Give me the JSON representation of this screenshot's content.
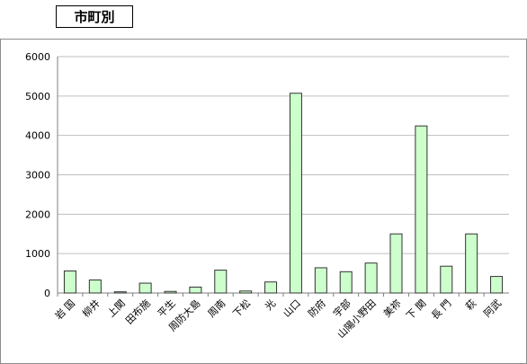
{
  "header": {
    "title": "市町別"
  },
  "chart_data": {
    "type": "bar",
    "title": "",
    "xlabel": "",
    "ylabel": "",
    "ylim": [
      0,
      6000
    ],
    "yticks": [
      0,
      1000,
      2000,
      3000,
      4000,
      5000,
      6000
    ],
    "grid": true,
    "categories": [
      "岩 国",
      "柳井",
      "上関",
      "田布施",
      "平生",
      "周防大島",
      "周南",
      "下松",
      "光",
      "山口",
      "防府",
      "宇部",
      "山陽小野田",
      "美祢",
      "下 関",
      "長 門",
      "萩",
      "阿武"
    ],
    "values": [
      560,
      330,
      30,
      250,
      40,
      150,
      580,
      50,
      280,
      5070,
      640,
      540,
      760,
      1500,
      4240,
      680,
      1500,
      420
    ],
    "colors": {
      "bar_fill": "#ccffcc",
      "bar_stroke": "#333333",
      "grid": "#bfbfbf",
      "axis": "#7f7f7f"
    }
  }
}
